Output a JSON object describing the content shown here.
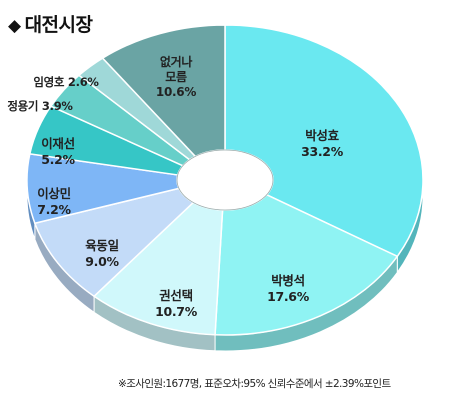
{
  "header": {
    "title": "대전시장",
    "title_icon": "diamond-bullet-icon"
  },
  "footnote": "※조사인원:1677명, 표준오차:95% 신뢰수준에서 ±2.39%포인트",
  "chart_data": {
    "type": "pie",
    "title": "대전시장",
    "categories": [
      "박성효",
      "박병석",
      "권선택",
      "육동일",
      "이상민",
      "이재선",
      "정용기",
      "임영호",
      "없거나 모름"
    ],
    "series": [
      {
        "values": [
          33.2,
          17.6,
          10.7,
          9.0,
          7.2,
          5.2,
          3.9,
          2.6,
          10.6
        ]
      }
    ],
    "value_labels": [
      "33.2%",
      "17.6%",
      "10.7%",
      "9.0%",
      "7.2%",
      "5.2%",
      "3.9%",
      "2.6%",
      "10.6%"
    ],
    "colors": [
      "#6ae8f0",
      "#8ff3f3",
      "#d0f8fb",
      "#c3dbf8",
      "#7eb6f6",
      "#36c6c6",
      "#66cfc9",
      "#9fd8d8",
      "#6aa4a4"
    ],
    "donut": true,
    "legend": "none"
  }
}
